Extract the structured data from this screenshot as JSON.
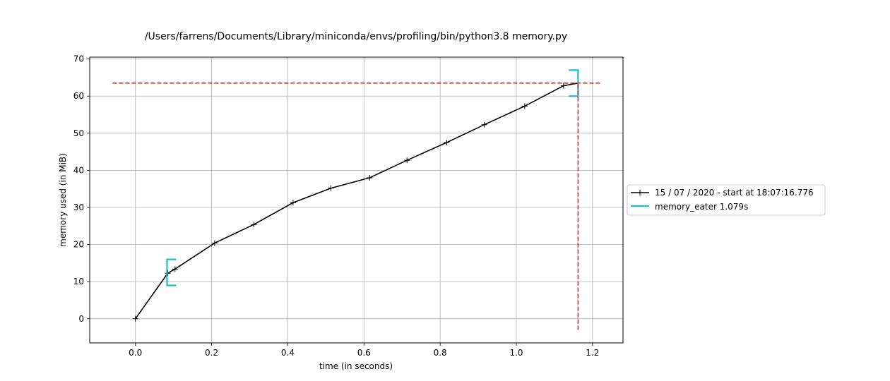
{
  "chart_data": {
    "type": "line",
    "title": "/Users/farrens/Documents/Library/miniconda/envs/profiling/bin/python3.8 memory.py",
    "xlabel": "time (in seconds)",
    "ylabel": "memory used (in MiB)",
    "xlim": [
      -0.12,
      1.28
    ],
    "ylim": [
      -6.5,
      70.5
    ],
    "xticks": [
      0.0,
      0.2,
      0.4,
      0.6,
      0.8,
      1.0,
      1.2
    ],
    "xtick_labels": [
      "0.0",
      "0.2",
      "0.4",
      "0.6",
      "0.8",
      "1.0",
      "1.2"
    ],
    "yticks": [
      0,
      10,
      20,
      30,
      40,
      50,
      60,
      70
    ],
    "ytick_labels": [
      "0",
      "10",
      "20",
      "30",
      "40",
      "50",
      "60",
      "70"
    ],
    "grid": true,
    "legend_position": "right",
    "series": [
      {
        "name": "15 / 07 / 2020 - start at 18:07:16.776",
        "color": "#000000",
        "marker": "plus",
        "x": [
          0.0,
          0.085,
          0.104,
          0.208,
          0.311,
          0.414,
          0.513,
          0.615,
          0.713,
          0.817,
          0.916,
          1.022,
          1.124,
          1.162
        ],
        "y": [
          0.0,
          12.3,
          13.4,
          20.4,
          25.4,
          31.3,
          35.2,
          38.0,
          42.7,
          47.5,
          52.3,
          57.3,
          62.8,
          63.5
        ]
      }
    ],
    "function_markers": [
      {
        "name": "memory_eater 1.079s",
        "color": "#17becf",
        "start_x": 0.083,
        "start_y_range": [
          9.0,
          16.0
        ],
        "end_x": 1.162,
        "end_y_range": [
          60.0,
          67.0
        ]
      }
    ],
    "peak_lines": {
      "color": "#d62728",
      "y": 63.5,
      "x": 1.162,
      "h_range": [
        -0.06,
        1.22
      ],
      "v_range": [
        -3.0,
        63.5
      ]
    }
  }
}
